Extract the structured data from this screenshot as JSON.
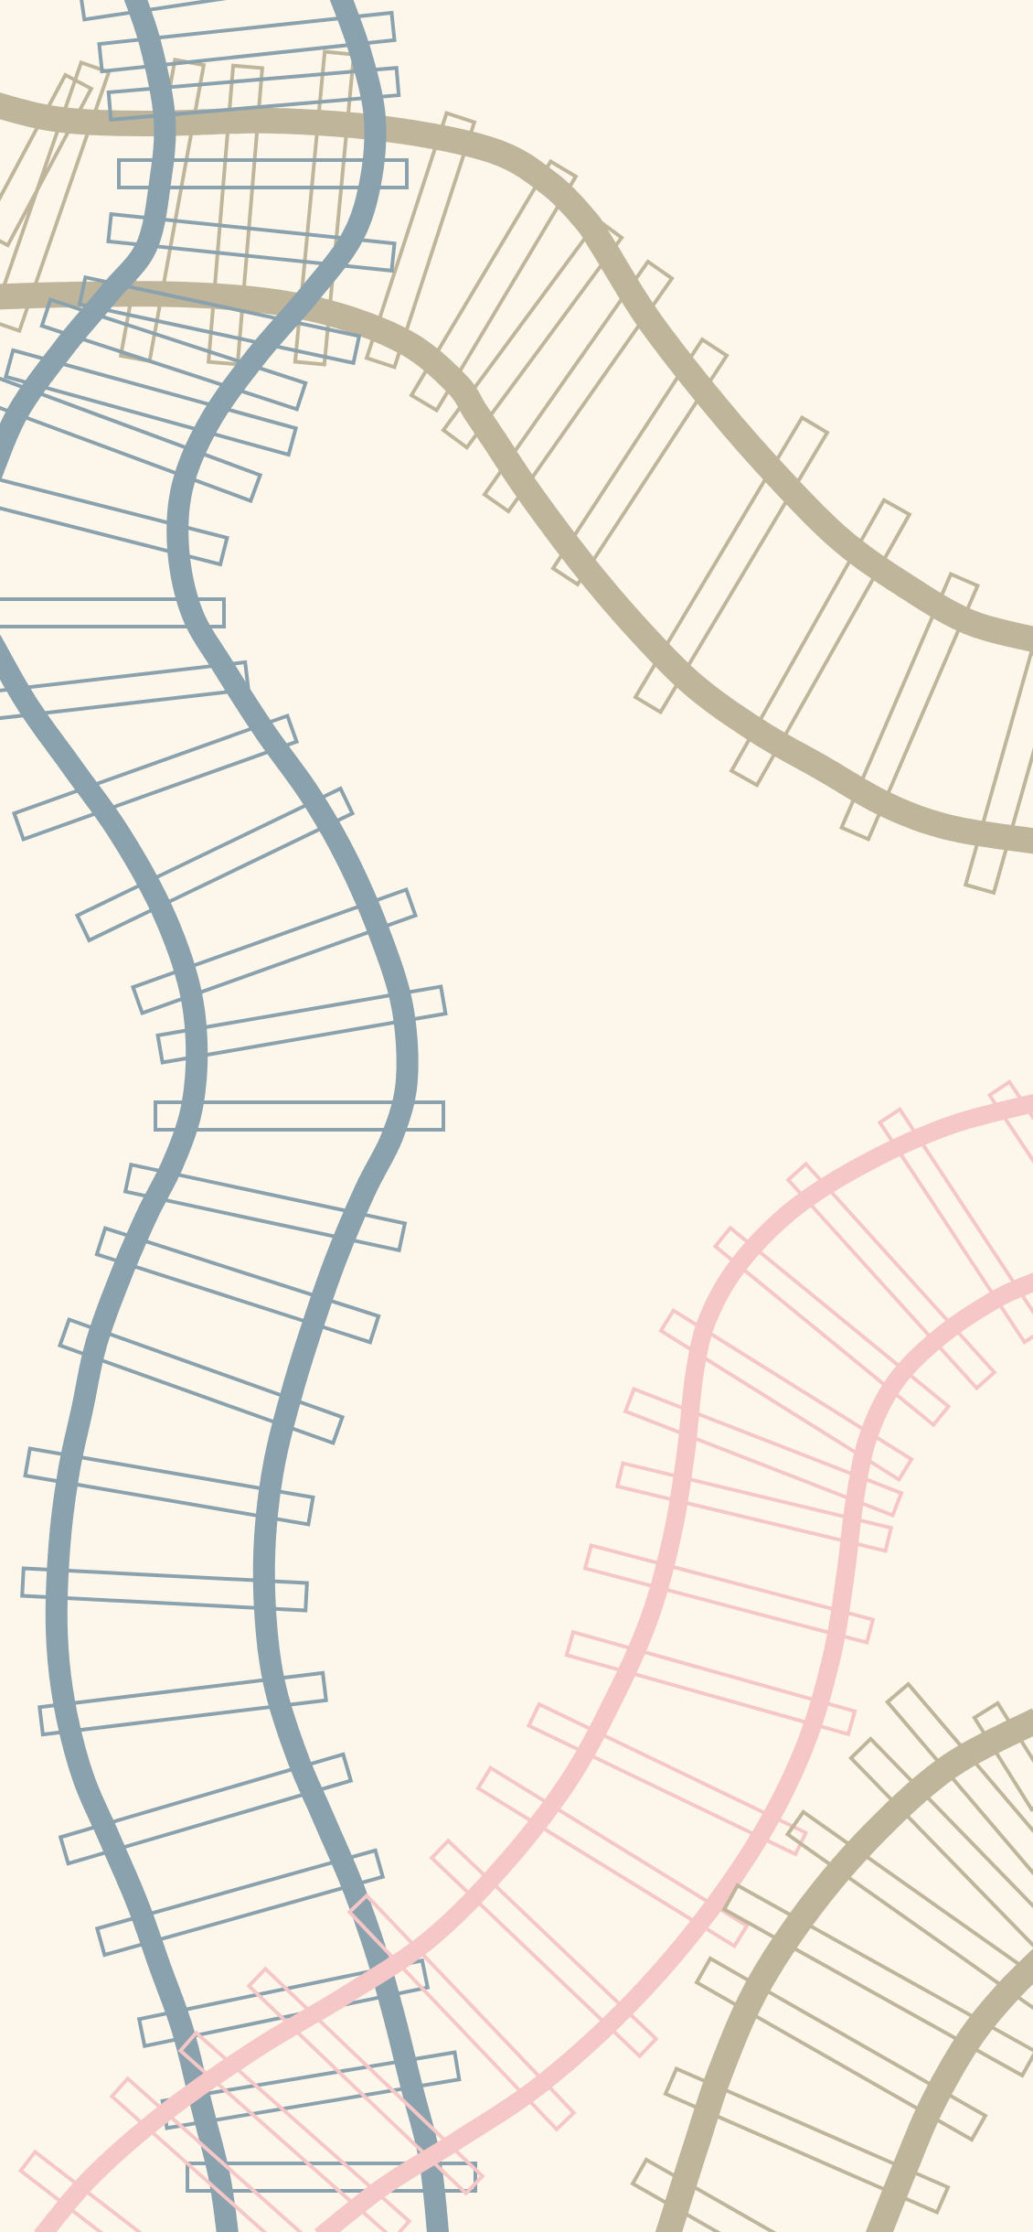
{
  "colors": {
    "background": "#fdf6ea",
    "beige_track": "#bfb59b",
    "blue_track": "#8aa1ae",
    "pink_track": "#f5c7c7"
  },
  "tracks": [
    {
      "name": "blue-track",
      "color_key": "blue_track"
    },
    {
      "name": "beige-track-top",
      "color_key": "beige_track"
    },
    {
      "name": "pink-track",
      "color_key": "pink_track"
    },
    {
      "name": "beige-track-bottom",
      "color_key": "beige_track"
    }
  ]
}
